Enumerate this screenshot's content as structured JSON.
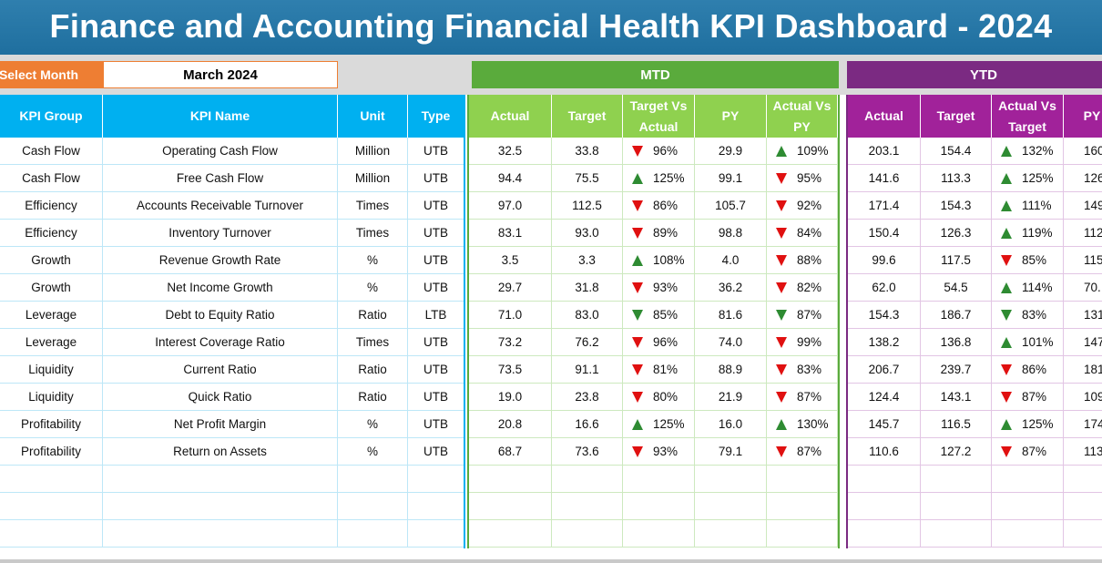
{
  "title": "Finance and Accounting Financial Health KPI Dashboard - 2024",
  "select_month": {
    "label": "Select Month",
    "value": "March 2024"
  },
  "sections": {
    "mtd_label": "MTD",
    "ytd_label": "YTD"
  },
  "colors": {
    "title_bar": "#1f6f9f",
    "select_label": "#ee7e33",
    "kpi_header": "#00b0f0",
    "mtd": "#5aab3c",
    "mtd_header": "#8fd14f",
    "ytd": "#7b2a82",
    "ytd_header": "#a1229a",
    "arrow_up": "#2e8b32",
    "arrow_down": "#e01010"
  },
  "kpi_headers": [
    "KPI Group",
    "KPI Name",
    "Unit",
    "Type"
  ],
  "mtd_headers": [
    "Actual",
    "Target",
    "Target Vs Actual",
    "PY",
    "Actual Vs PY"
  ],
  "ytd_headers": [
    "Actual",
    "Target",
    "Actual Vs Target",
    "PY"
  ],
  "kpis": [
    {
      "group": "Cash Flow",
      "name": "Operating Cash Flow",
      "unit": "Million",
      "type": "UTB",
      "mtd": {
        "actual": "32.5",
        "target": "33.8",
        "tva": "96%",
        "tva_dir": "down",
        "py": "29.9",
        "avp": "109%",
        "avp_dir": "up"
      },
      "ytd": {
        "actual": "203.1",
        "target": "154.4",
        "avt": "132%",
        "avt_dir": "up",
        "py": "160"
      }
    },
    {
      "group": "Cash Flow",
      "name": "Free Cash Flow",
      "unit": "Million",
      "type": "UTB",
      "mtd": {
        "actual": "94.4",
        "target": "75.5",
        "tva": "125%",
        "tva_dir": "up",
        "py": "99.1",
        "avp": "95%",
        "avp_dir": "down"
      },
      "ytd": {
        "actual": "141.6",
        "target": "113.3",
        "avt": "125%",
        "avt_dir": "up",
        "py": "126"
      }
    },
    {
      "group": "Efficiency",
      "name": "Accounts Receivable Turnover",
      "unit": "Times",
      "type": "UTB",
      "mtd": {
        "actual": "97.0",
        "target": "112.5",
        "tva": "86%",
        "tva_dir": "down",
        "py": "105.7",
        "avp": "92%",
        "avp_dir": "down"
      },
      "ytd": {
        "actual": "171.4",
        "target": "154.3",
        "avt": "111%",
        "avt_dir": "up",
        "py": "149"
      }
    },
    {
      "group": "Efficiency",
      "name": "Inventory Turnover",
      "unit": "Times",
      "type": "UTB",
      "mtd": {
        "actual": "83.1",
        "target": "93.0",
        "tva": "89%",
        "tva_dir": "down",
        "py": "98.8",
        "avp": "84%",
        "avp_dir": "down"
      },
      "ytd": {
        "actual": "150.4",
        "target": "126.3",
        "avt": "119%",
        "avt_dir": "up",
        "py": "112"
      }
    },
    {
      "group": "Growth",
      "name": "Revenue Growth Rate",
      "unit": "%",
      "type": "UTB",
      "mtd": {
        "actual": "3.5",
        "target": "3.3",
        "tva": "108%",
        "tva_dir": "up",
        "py": "4.0",
        "avp": "88%",
        "avp_dir": "down"
      },
      "ytd": {
        "actual": "99.6",
        "target": "117.5",
        "avt": "85%",
        "avt_dir": "down",
        "py": "115"
      }
    },
    {
      "group": "Growth",
      "name": "Net Income Growth",
      "unit": "%",
      "type": "UTB",
      "mtd": {
        "actual": "29.7",
        "target": "31.8",
        "tva": "93%",
        "tva_dir": "down",
        "py": "36.2",
        "avp": "82%",
        "avp_dir": "down"
      },
      "ytd": {
        "actual": "62.0",
        "target": "54.5",
        "avt": "114%",
        "avt_dir": "up",
        "py": "70."
      }
    },
    {
      "group": "Leverage",
      "name": "Debt to Equity Ratio",
      "unit": "Ratio",
      "type": "LTB",
      "mtd": {
        "actual": "71.0",
        "target": "83.0",
        "tva": "85%",
        "tva_dir": "down-green",
        "py": "81.6",
        "avp": "87%",
        "avp_dir": "down-green"
      },
      "ytd": {
        "actual": "154.3",
        "target": "186.7",
        "avt": "83%",
        "avt_dir": "down-green",
        "py": "131"
      }
    },
    {
      "group": "Leverage",
      "name": "Interest Coverage Ratio",
      "unit": "Times",
      "type": "UTB",
      "mtd": {
        "actual": "73.2",
        "target": "76.2",
        "tva": "96%",
        "tva_dir": "down",
        "py": "74.0",
        "avp": "99%",
        "avp_dir": "down"
      },
      "ytd": {
        "actual": "138.2",
        "target": "136.8",
        "avt": "101%",
        "avt_dir": "up",
        "py": "147"
      }
    },
    {
      "group": "Liquidity",
      "name": "Current Ratio",
      "unit": "Ratio",
      "type": "UTB",
      "mtd": {
        "actual": "73.5",
        "target": "91.1",
        "tva": "81%",
        "tva_dir": "down",
        "py": "88.9",
        "avp": "83%",
        "avp_dir": "down"
      },
      "ytd": {
        "actual": "206.7",
        "target": "239.7",
        "avt": "86%",
        "avt_dir": "down",
        "py": "181"
      }
    },
    {
      "group": "Liquidity",
      "name": "Quick Ratio",
      "unit": "Ratio",
      "type": "UTB",
      "mtd": {
        "actual": "19.0",
        "target": "23.8",
        "tva": "80%",
        "tva_dir": "down",
        "py": "21.9",
        "avp": "87%",
        "avp_dir": "down"
      },
      "ytd": {
        "actual": "124.4",
        "target": "143.1",
        "avt": "87%",
        "avt_dir": "down",
        "py": "109"
      }
    },
    {
      "group": "Profitability",
      "name": "Net Profit Margin",
      "unit": "%",
      "type": "UTB",
      "mtd": {
        "actual": "20.8",
        "target": "16.6",
        "tva": "125%",
        "tva_dir": "up",
        "py": "16.0",
        "avp": "130%",
        "avp_dir": "up"
      },
      "ytd": {
        "actual": "145.7",
        "target": "116.5",
        "avt": "125%",
        "avt_dir": "up",
        "py": "174"
      }
    },
    {
      "group": "Profitability",
      "name": "Return on Assets",
      "unit": "%",
      "type": "UTB",
      "mtd": {
        "actual": "68.7",
        "target": "73.6",
        "tva": "93%",
        "tva_dir": "down",
        "py": "79.1",
        "avp": "87%",
        "avp_dir": "down"
      },
      "ytd": {
        "actual": "110.6",
        "target": "127.2",
        "avt": "87%",
        "avt_dir": "down",
        "py": "113"
      }
    }
  ]
}
